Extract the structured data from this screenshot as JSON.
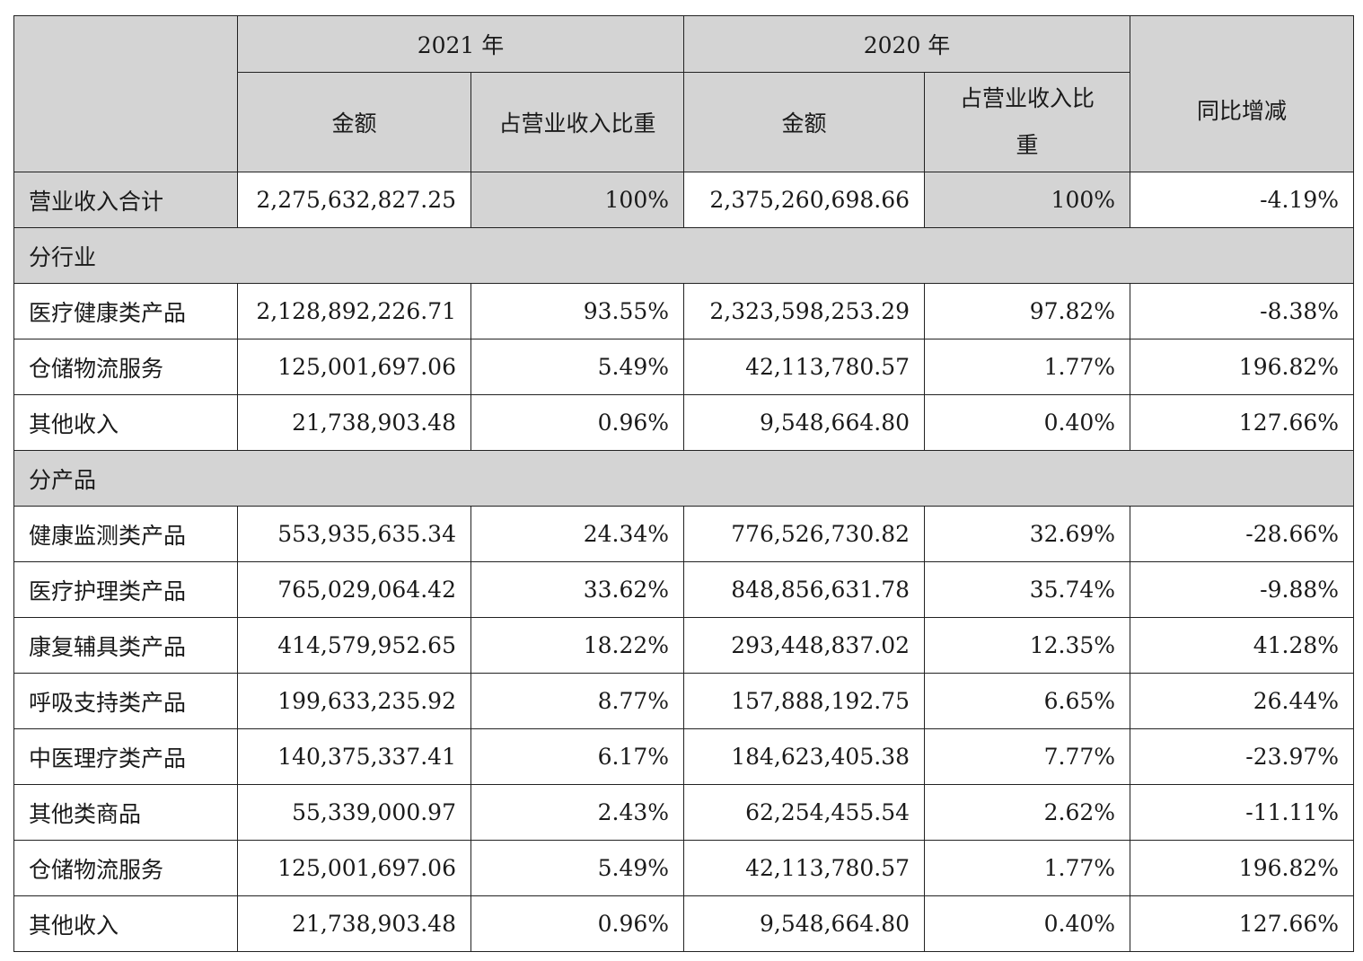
{
  "header": {
    "year_2021": "2021 年",
    "year_2020": "2020 年",
    "amount": "金额",
    "share": "占营业收入比重",
    "yoy": "同比增减"
  },
  "total": {
    "label": "营业收入合计",
    "a2021": "2,275,632,827.25",
    "s2021": "100%",
    "a2020": "2,375,260,698.66",
    "s2020": "100%",
    "yoy": "-4.19%"
  },
  "by_industry": {
    "label": "分行业",
    "rows": [
      {
        "label": "医疗健康类产品",
        "a2021": "2,128,892,226.71",
        "s2021": "93.55%",
        "a2020": "2,323,598,253.29",
        "s2020": "97.82%",
        "yoy": "-8.38%"
      },
      {
        "label": "仓储物流服务",
        "a2021": "125,001,697.06",
        "s2021": "5.49%",
        "a2020": "42,113,780.57",
        "s2020": "1.77%",
        "yoy": "196.82%"
      },
      {
        "label": "其他收入",
        "a2021": "21,738,903.48",
        "s2021": "0.96%",
        "a2020": "9,548,664.80",
        "s2020": "0.40%",
        "yoy": "127.66%"
      }
    ]
  },
  "by_product": {
    "label": "分产品",
    "rows": [
      {
        "label": "健康监测类产品",
        "a2021": "553,935,635.34",
        "s2021": "24.34%",
        "a2020": "776,526,730.82",
        "s2020": "32.69%",
        "yoy": "-28.66%"
      },
      {
        "label": "医疗护理类产品",
        "a2021": "765,029,064.42",
        "s2021": "33.62%",
        "a2020": "848,856,631.78",
        "s2020": "35.74%",
        "yoy": "-9.88%"
      },
      {
        "label": "康复辅具类产品",
        "a2021": "414,579,952.65",
        "s2021": "18.22%",
        "a2020": "293,448,837.02",
        "s2020": "12.35%",
        "yoy": "41.28%"
      },
      {
        "label": "呼吸支持类产品",
        "a2021": "199,633,235.92",
        "s2021": "8.77%",
        "a2020": "157,888,192.75",
        "s2020": "6.65%",
        "yoy": "26.44%"
      },
      {
        "label": "中医理疗类产品",
        "a2021": "140,375,337.41",
        "s2021": "6.17%",
        "a2020": "184,623,405.38",
        "s2020": "7.77%",
        "yoy": "-23.97%"
      },
      {
        "label": "其他类商品",
        "a2021": "55,339,000.97",
        "s2021": "2.43%",
        "a2020": "62,254,455.54",
        "s2020": "2.62%",
        "yoy": "-11.11%"
      },
      {
        "label": "仓储物流服务",
        "a2021": "125,001,697.06",
        "s2021": "5.49%",
        "a2020": "42,113,780.57",
        "s2020": "1.77%",
        "yoy": "196.82%"
      },
      {
        "label": "其他收入",
        "a2021": "21,738,903.48",
        "s2021": "0.96%",
        "a2020": "9,548,664.80",
        "s2020": "0.40%",
        "yoy": "127.66%"
      }
    ]
  }
}
